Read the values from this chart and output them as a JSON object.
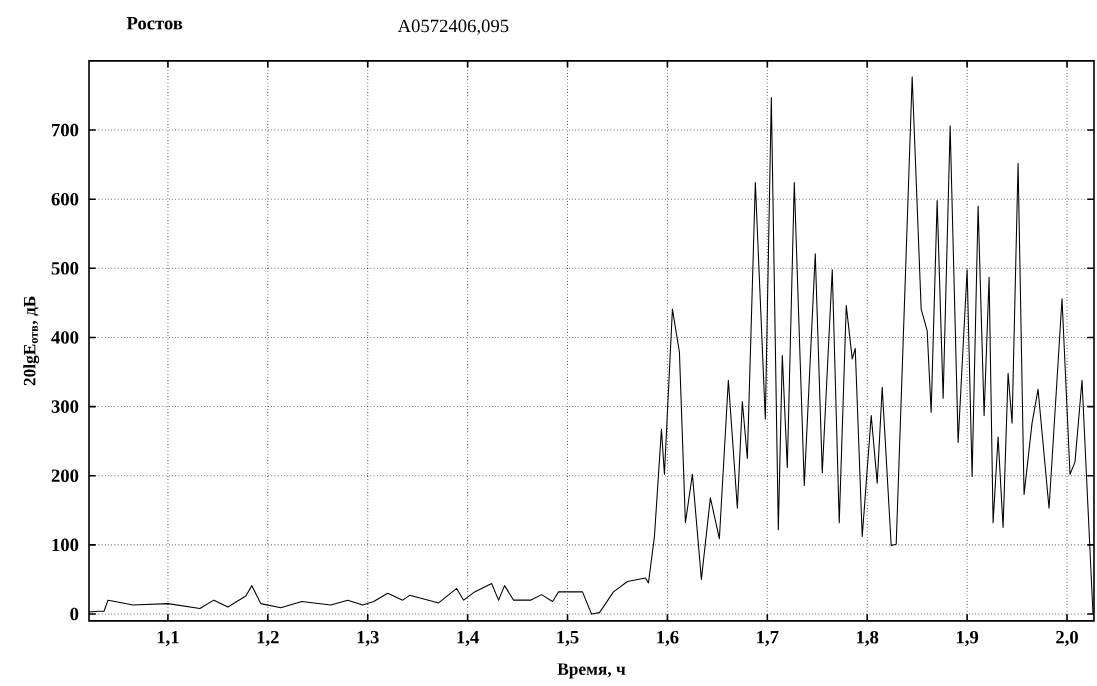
{
  "chart_data": {
    "type": "line",
    "title": "Ростов",
    "subtitle": "A0572406,095",
    "xlabel": "Время, ч",
    "ylabel": "20lgE$_{отв}$, дБ",
    "x": [
      1.021,
      1.03,
      1.036,
      1.04,
      1.047,
      1.065,
      1.1,
      1.132,
      1.146,
      1.16,
      1.178,
      1.184,
      1.193,
      1.213,
      1.234,
      1.263,
      1.28,
      1.295,
      1.306,
      1.32,
      1.335,
      1.342,
      1.371,
      1.389,
      1.396,
      1.406,
      1.424,
      1.431,
      1.437,
      1.446,
      1.463,
      1.474,
      1.485,
      1.491,
      1.515,
      1.524,
      1.532,
      1.546,
      1.56,
      1.578,
      1.581,
      1.587,
      1.594,
      1.597,
      1.605,
      1.612,
      1.618,
      1.625,
      1.634,
      1.643,
      1.652,
      1.661,
      1.67,
      1.675,
      1.68,
      1.688,
      1.698,
      1.704,
      1.711,
      1.715,
      1.72,
      1.727,
      1.737,
      1.748,
      1.755,
      1.765,
      1.772,
      1.779,
      1.785,
      1.788,
      1.795,
      1.804,
      1.81,
      1.815,
      1.824,
      1.829,
      1.836,
      1.845,
      1.854,
      1.86,
      1.864,
      1.87,
      1.876,
      1.883,
      1.891,
      1.9,
      1.905,
      1.911,
      1.917,
      1.922,
      1.926,
      1.931,
      1.936,
      1.941,
      1.945,
      1.951,
      1.957,
      1.965,
      1.971,
      1.982,
      1.995,
      2.003,
      2.008,
      2.015,
      2.02,
      2.026
    ],
    "values": [
      3,
      4,
      4,
      20,
      18,
      13,
      15,
      8,
      20,
      10,
      26,
      41,
      15,
      9,
      18,
      13,
      20,
      13,
      18,
      30,
      20,
      27,
      16,
      37,
      20,
      31,
      44,
      20,
      41,
      20,
      20,
      28,
      18,
      32,
      32,
      0,
      2,
      32,
      47,
      52,
      45,
      112,
      267,
      202,
      441,
      379,
      132,
      202,
      50,
      168,
      109,
      338,
      153,
      307,
      225,
      624,
      282,
      747,
      122,
      374,
      212,
      624,
      186,
      521,
      204,
      498,
      132,
      446,
      369,
      384,
      112,
      287,
      189,
      328,
      99,
      101,
      395,
      777,
      441,
      410,
      292,
      598,
      312,
      706,
      248,
      498,
      199,
      590,
      287,
      487,
      132,
      256,
      125,
      348,
      276,
      652,
      173,
      276,
      325,
      153,
      456,
      202,
      220,
      338,
      184,
      0
    ],
    "color": "#000000",
    "line_style": "solid",
    "marker": "none",
    "xlim": [
      1.021,
      2.027
    ],
    "ylim": [
      -10,
      800
    ],
    "xticks": [
      {
        "value": 1.1,
        "label": "1,1"
      },
      {
        "value": 1.2,
        "label": "1,2"
      },
      {
        "value": 1.3,
        "label": "1,3"
      },
      {
        "value": 1.4,
        "label": "1,4"
      },
      {
        "value": 1.5,
        "label": "1,5"
      },
      {
        "value": 1.6,
        "label": "1,6"
      },
      {
        "value": 1.7,
        "label": "1,7"
      },
      {
        "value": 1.8,
        "label": "1,8"
      },
      {
        "value": 1.9,
        "label": "1,9"
      },
      {
        "value": 2.0,
        "label": "2,0"
      }
    ],
    "yticks": [
      0,
      100,
      200,
      300,
      400,
      500,
      600,
      700
    ],
    "grid": true
  }
}
